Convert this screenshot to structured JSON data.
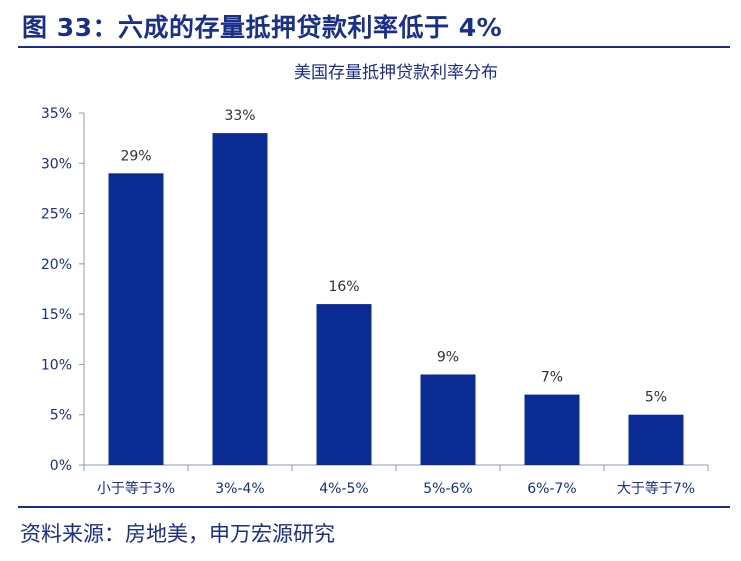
{
  "figure": {
    "title": "图 33：六成的存量抵押贷款利率低于 4%",
    "source": "资料来源：房地美，申万宏源研究"
  },
  "colors": {
    "brand": "#1a2e8c",
    "bar": "#0a2b93",
    "axis": "#8e9bbd"
  },
  "chart_data": {
    "type": "bar",
    "title": "美国存量抵押贷款利率分布",
    "xlabel": "",
    "ylabel": "",
    "categories": [
      "小于等于3%",
      "3%-4%",
      "4%-5%",
      "5%-6%",
      "6%-7%",
      "大于等于7%"
    ],
    "values": [
      29,
      33,
      16,
      9,
      7,
      5
    ],
    "data_labels": [
      "29%",
      "33%",
      "16%",
      "9%",
      "7%",
      "5%"
    ],
    "ylim": [
      0,
      35
    ],
    "yticks": [
      0,
      5,
      10,
      15,
      20,
      25,
      30,
      35
    ],
    "ytick_labels": [
      "0%",
      "5%",
      "10%",
      "15%",
      "20%",
      "25%",
      "30%",
      "35%"
    ],
    "grid": false,
    "legend": "none"
  }
}
